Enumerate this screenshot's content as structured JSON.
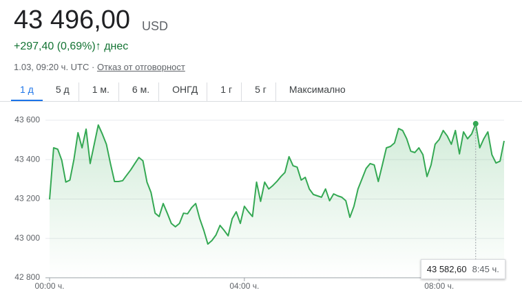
{
  "header": {
    "price": "43 496,00",
    "currency": "USD",
    "change": "+297,40 (0,69%)",
    "arrow": "↑",
    "period": "днес",
    "timestamp": "1.03, 09:20 ч. UTC ·",
    "disclaimer": "Отказ от отговорност"
  },
  "tabs": [
    "1 д",
    "5 д",
    "1 м.",
    "6 м.",
    "ОНГД",
    "1 г",
    "5 г",
    "Максимално"
  ],
  "tooltip": {
    "price": "43 582,60",
    "time": "8:45 ч."
  },
  "chart_data": {
    "type": "line",
    "color": "#34a853",
    "grid": true,
    "x": [
      0,
      5,
      10,
      15,
      20,
      25,
      30,
      35,
      40,
      45,
      50,
      55,
      60,
      65,
      70,
      75,
      80,
      85,
      90,
      95,
      100,
      105,
      110,
      115,
      120,
      125,
      130,
      135,
      140,
      145,
      150,
      155,
      160,
      165,
      170,
      175,
      180,
      185,
      190,
      195,
      200,
      205,
      210,
      215,
      220,
      225,
      230,
      235,
      240,
      245,
      250,
      255,
      260,
      265,
      270,
      275,
      280,
      285,
      290,
      295,
      300,
      305,
      310,
      315,
      320,
      325,
      330,
      335,
      340,
      345,
      350,
      355,
      360,
      365,
      370,
      375,
      380,
      385,
      390,
      395,
      400,
      405,
      410,
      415,
      420,
      425,
      430,
      435,
      440,
      445,
      450,
      455,
      460,
      465,
      470,
      475,
      480,
      485,
      490,
      495,
      500,
      505,
      510,
      515,
      520,
      525,
      530,
      535,
      540,
      545,
      550,
      555,
      560
    ],
    "values": [
      43198,
      43460,
      43453,
      43397,
      43286,
      43296,
      43401,
      43537,
      43460,
      43555,
      43380,
      43478,
      43576,
      43530,
      43478,
      43380,
      43289,
      43289,
      43293,
      43321,
      43348,
      43380,
      43411,
      43394,
      43286,
      43233,
      43128,
      43111,
      43177,
      43128,
      43076,
      43059,
      43076,
      43128,
      43125,
      43156,
      43177,
      43100,
      43041,
      42971,
      42989,
      43017,
      43066,
      43041,
      43013,
      43100,
      43135,
      43076,
      43163,
      43135,
      43111,
      43286,
      43188,
      43286,
      43251,
      43268,
      43289,
      43314,
      43335,
      43415,
      43369,
      43362,
      43296,
      43310,
      43251,
      43223,
      43216,
      43209,
      43251,
      43191,
      43226,
      43216,
      43209,
      43191,
      43107,
      43163,
      43251,
      43303,
      43355,
      43380,
      43373,
      43289,
      43373,
      43460,
      43467,
      43485,
      43558,
      43548,
      43506,
      43443,
      43436,
      43460,
      43425,
      43314,
      43373,
      43478,
      43502,
      43548,
      43520,
      43478,
      43548,
      43429,
      43541,
      43506,
      43530,
      43582.6,
      43460,
      43506,
      43541,
      43425,
      43383,
      43392,
      43495
    ],
    "xlim": [
      0,
      560
    ],
    "xticks": [
      {
        "value": 0,
        "label": "00:00 ч."
      },
      {
        "value": 240,
        "label": "04:00 ч."
      },
      {
        "value": 480,
        "label": "08:00 ч."
      }
    ],
    "ylim": [
      42800,
      43680
    ],
    "yticks": [
      {
        "value": 42800,
        "label": "42 800"
      },
      {
        "value": 43000,
        "label": "43 000"
      },
      {
        "value": 43200,
        "label": "43 200"
      },
      {
        "value": 43400,
        "label": "43 400"
      },
      {
        "value": 43600,
        "label": "43 600"
      }
    ]
  }
}
